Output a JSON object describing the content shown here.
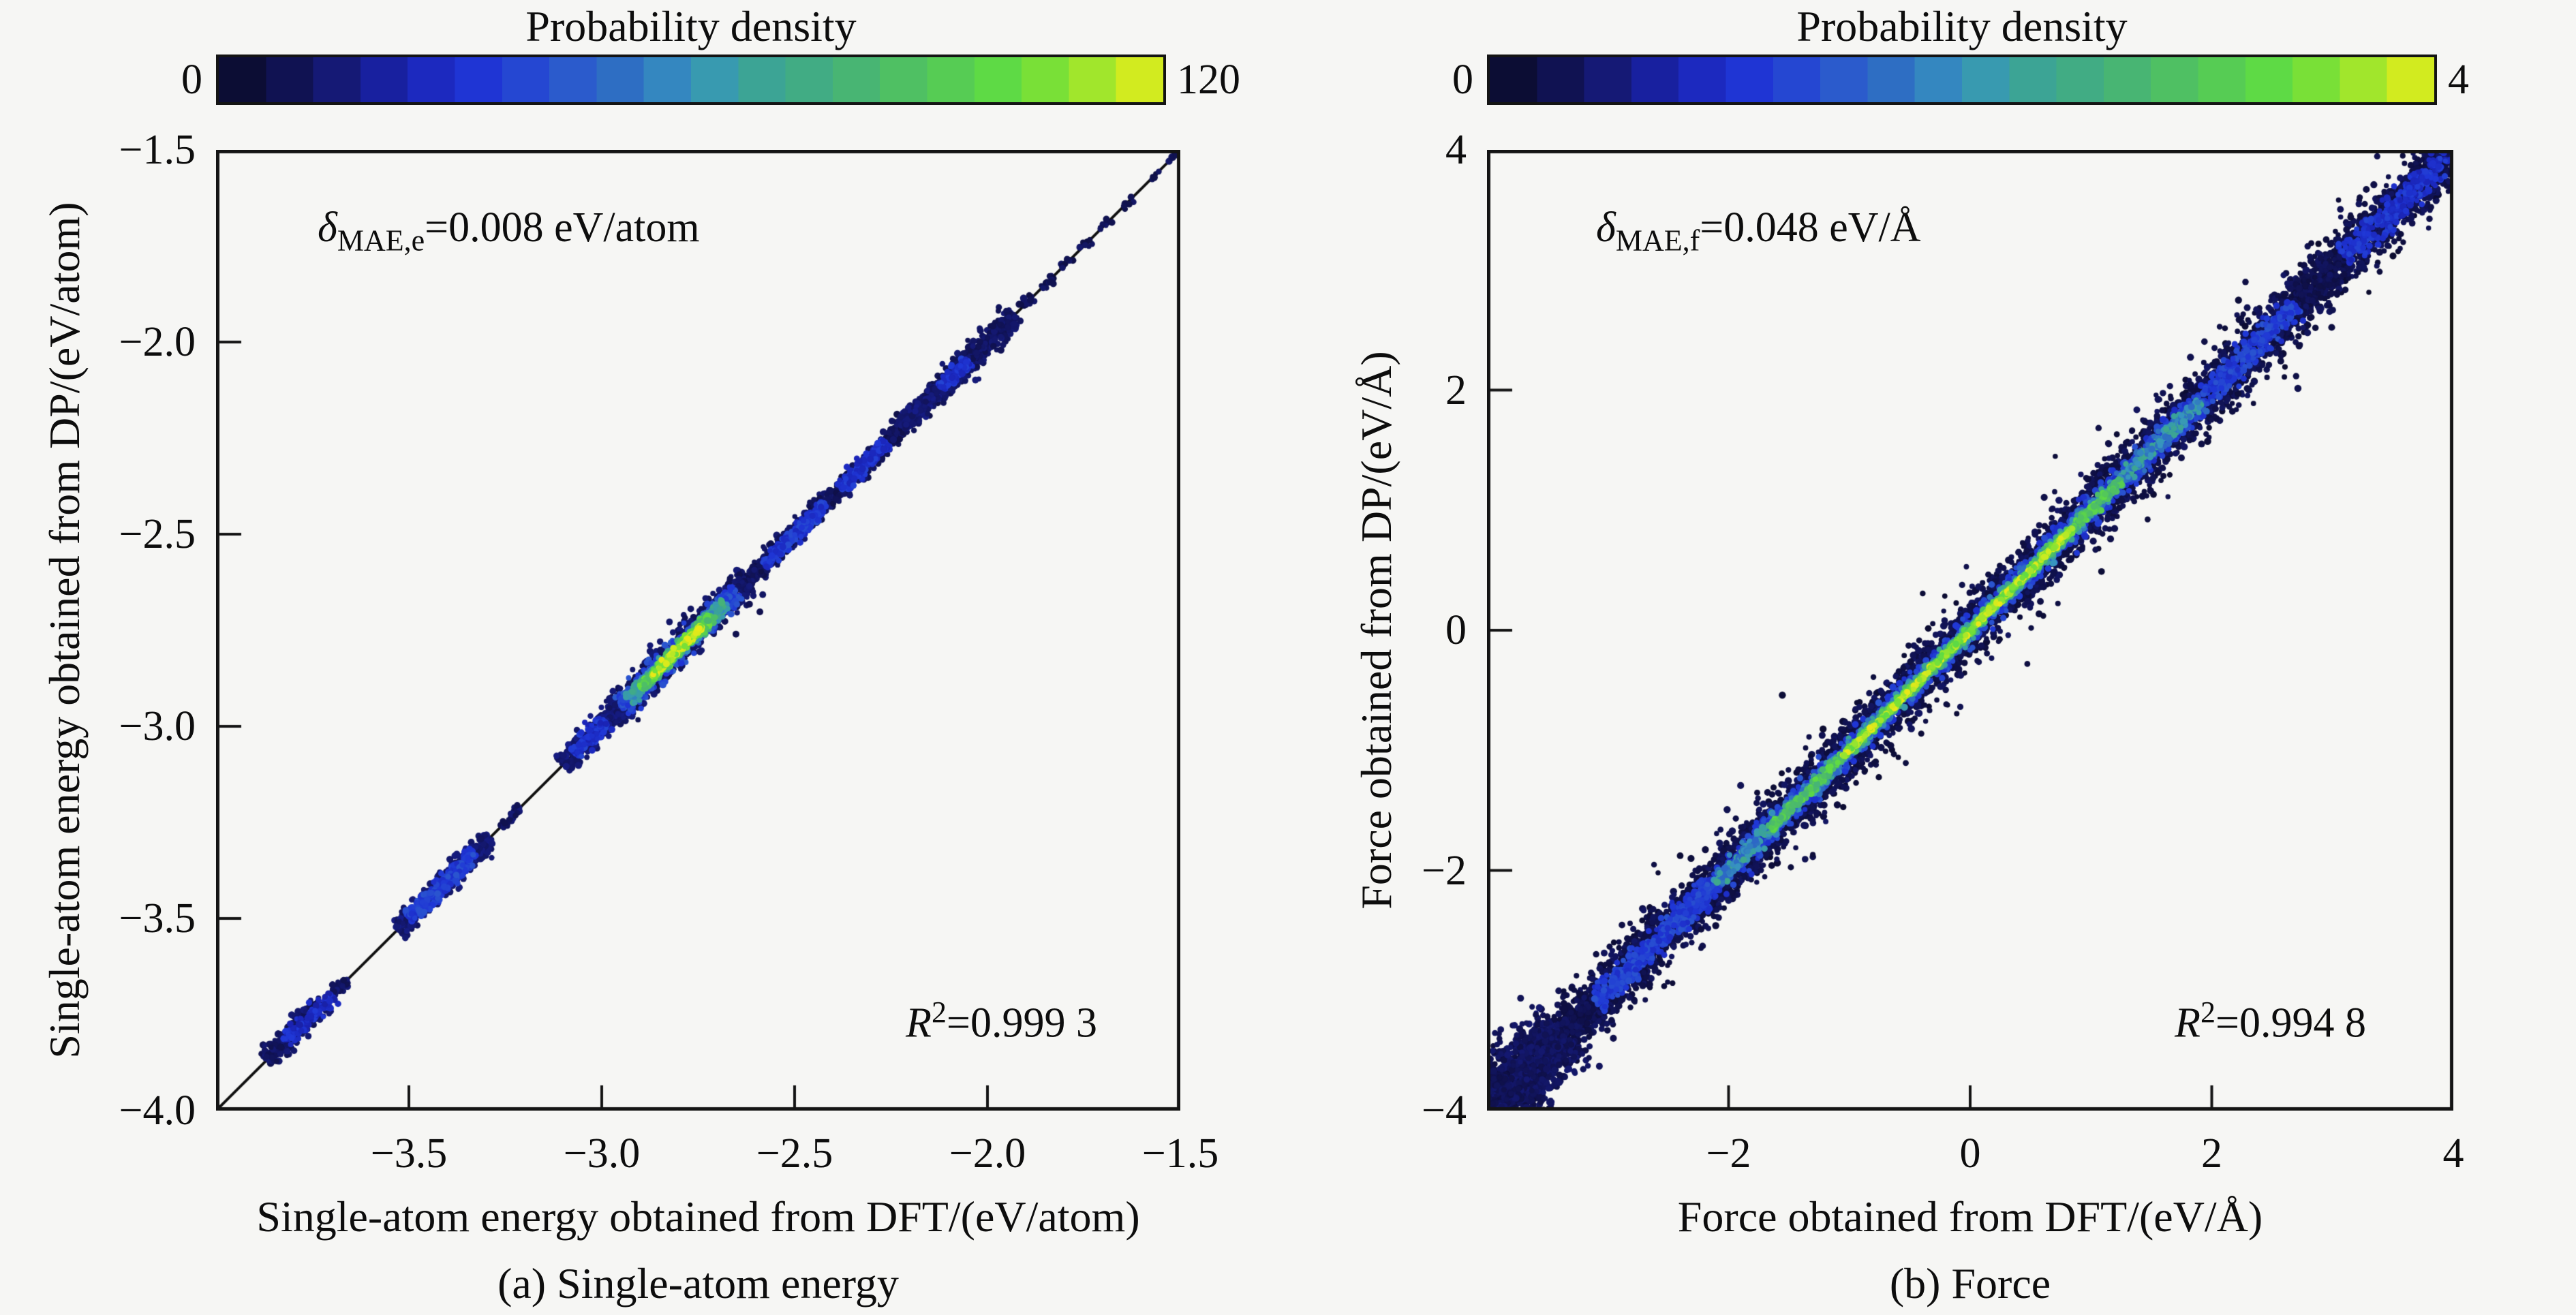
{
  "page": {
    "background": "#f6f6f4",
    "accent_black": "#141414"
  },
  "colormap_stops": [
    [
      0.0,
      "#0a0a26"
    ],
    [
      0.06,
      "#0f1048"
    ],
    [
      0.13,
      "#151a78"
    ],
    [
      0.2,
      "#1a23b4"
    ],
    [
      0.28,
      "#1f36d6"
    ],
    [
      0.36,
      "#2a55cf"
    ],
    [
      0.44,
      "#2f74c0"
    ],
    [
      0.5,
      "#3795c0"
    ],
    [
      0.56,
      "#3aa29a"
    ],
    [
      0.63,
      "#42ad82"
    ],
    [
      0.7,
      "#4cba6b"
    ],
    [
      0.77,
      "#55cb55"
    ],
    [
      0.83,
      "#5fdb43"
    ],
    [
      0.88,
      "#7ce136"
    ],
    [
      0.93,
      "#a5e62b"
    ],
    [
      0.97,
      "#cdeb20"
    ],
    [
      1.0,
      "#e9e818"
    ]
  ],
  "chart_data": [
    {
      "id": "energy",
      "type": "scatter",
      "caption": "(a) Single-atom energy",
      "colorbar": {
        "title": "Probability density",
        "min_label": "0",
        "max_label": "120",
        "min": 0,
        "max": 120,
        "segments": 20
      },
      "xlabel": "Single-atom energy obtained from DFT/(eV/atom)",
      "ylabel": "Single-atom energy obtained from DP/(eV/atom)",
      "xlim": [
        -4.0,
        -1.5
      ],
      "ylim": [
        -4.0,
        -1.5
      ],
      "xticks": [
        {
          "v": -3.5,
          "label": "−3.5"
        },
        {
          "v": -3.0,
          "label": "−3.0"
        },
        {
          "v": -2.5,
          "label": "−2.5"
        },
        {
          "v": -2.0,
          "label": "−2.0"
        },
        {
          "v": -1.5,
          "label": "−1.5"
        }
      ],
      "yticks": [
        {
          "v": -1.5,
          "label": "−1.5"
        },
        {
          "v": -2.0,
          "label": "−2.0"
        },
        {
          "v": -2.5,
          "label": "−2.5"
        },
        {
          "v": -3.0,
          "label": "−3.0"
        },
        {
          "v": -3.5,
          "label": "−3.5"
        },
        {
          "v": -4.0,
          "label": "−4.0"
        }
      ],
      "identity_line": true,
      "annotation_mae": {
        "symbol": "δ",
        "sub": "MAE,e",
        "rest": "=0.008 eV/atom"
      },
      "annotation_r2": {
        "base": "R",
        "sup": "2",
        "rest": "=0.999 3"
      },
      "density_bands": [
        {
          "from": -3.87,
          "to": -3.72,
          "sigma": 0.013,
          "n": 260,
          "level": 0.1
        },
        {
          "from": -3.82,
          "to": -3.7,
          "sigma": 0.009,
          "n": 130,
          "level": 0.24
        },
        {
          "from": -3.7,
          "to": -3.66,
          "sigma": 0.007,
          "n": 40,
          "level": 0.1
        },
        {
          "from": -3.53,
          "to": -3.29,
          "sigma": 0.014,
          "n": 420,
          "level": 0.12
        },
        {
          "from": -3.5,
          "to": -3.33,
          "sigma": 0.009,
          "n": 320,
          "level": 0.3
        },
        {
          "from": -3.26,
          "to": -3.21,
          "sigma": 0.006,
          "n": 35,
          "level": 0.1
        },
        {
          "from": -3.1,
          "to": -2.94,
          "sigma": 0.015,
          "n": 300,
          "level": 0.12
        },
        {
          "from": -3.07,
          "to": -2.99,
          "sigma": 0.01,
          "n": 130,
          "level": 0.26
        },
        {
          "from": -2.97,
          "to": -2.62,
          "sigma": 0.02,
          "n": 700,
          "level": 0.1
        },
        {
          "from": -2.95,
          "to": -2.65,
          "sigma": 0.013,
          "n": 480,
          "level": 0.33
        },
        {
          "from": -2.93,
          "to": -2.68,
          "sigma": 0.009,
          "n": 380,
          "level": 0.56
        },
        {
          "from": -2.9,
          "to": -2.71,
          "sigma": 0.006,
          "n": 280,
          "level": 0.78
        },
        {
          "from": -2.87,
          "to": -2.74,
          "sigma": 0.0035,
          "n": 170,
          "level": 0.95
        },
        {
          "from": -2.62,
          "to": -2.04,
          "sigma": 0.012,
          "n": 950,
          "level": 0.09
        },
        {
          "from": -2.58,
          "to": -2.42,
          "sigma": 0.008,
          "n": 220,
          "level": 0.28
        },
        {
          "from": -2.38,
          "to": -2.26,
          "sigma": 0.008,
          "n": 160,
          "level": 0.26
        },
        {
          "from": -2.22,
          "to": -2.1,
          "sigma": 0.011,
          "n": 180,
          "level": 0.12
        },
        {
          "from": -2.12,
          "to": -2.05,
          "sigma": 0.008,
          "n": 100,
          "level": 0.26
        },
        {
          "from": -2.09,
          "to": -1.93,
          "sigma": 0.015,
          "n": 340,
          "level": 0.1
        },
        {
          "from": -1.91,
          "to": -1.88,
          "sigma": 0.006,
          "n": 16,
          "level": 0.08
        },
        {
          "from": -1.86,
          "to": -1.83,
          "sigma": 0.006,
          "n": 12,
          "level": 0.08
        },
        {
          "from": -1.81,
          "to": -1.78,
          "sigma": 0.005,
          "n": 10,
          "level": 0.08
        },
        {
          "from": -1.76,
          "to": -1.73,
          "sigma": 0.005,
          "n": 9,
          "level": 0.08
        },
        {
          "from": -1.71,
          "to": -1.68,
          "sigma": 0.005,
          "n": 8,
          "level": 0.08
        },
        {
          "from": -1.65,
          "to": -1.62,
          "sigma": 0.004,
          "n": 7,
          "level": 0.08
        },
        {
          "from": -1.58,
          "to": -1.55,
          "sigma": 0.004,
          "n": 6,
          "level": 0.08
        },
        {
          "from": -1.53,
          "to": -1.51,
          "sigma": 0.004,
          "n": 5,
          "level": 0.08
        }
      ],
      "outlier_points": [
        [
          -2.617,
          -2.682
        ],
        [
          -2.59,
          -2.702
        ],
        [
          -2.652,
          -2.76
        ]
      ]
    },
    {
      "id": "force",
      "type": "scatter",
      "caption": "(b) Force",
      "colorbar": {
        "title": "Probability density",
        "min_label": "0",
        "max_label": "4",
        "min": 0,
        "max": 4,
        "segments": 20
      },
      "xlabel": "Force obtained from DFT/(eV/Å)",
      "ylabel": "Force obtained from DP/(eV/Å)",
      "xlim": [
        -4,
        4
      ],
      "ylim": [
        -4,
        4
      ],
      "xticks": [
        {
          "v": -2,
          "label": "−2"
        },
        {
          "v": 0,
          "label": "0"
        },
        {
          "v": 2,
          "label": "2"
        },
        {
          "v": 4,
          "label": "4"
        }
      ],
      "yticks": [
        {
          "v": 4,
          "label": "4"
        },
        {
          "v": 2,
          "label": "2"
        },
        {
          "v": 0,
          "label": "0"
        },
        {
          "v": -2,
          "label": "−2"
        },
        {
          "v": -4,
          "label": "−4"
        }
      ],
      "identity_line": true,
      "annotation_mae": {
        "symbol": "δ",
        "sub": "MAE,f",
        "rest": "=0.048 eV/Å"
      },
      "annotation_r2": {
        "base": "R",
        "sup": "2",
        "rest": "=0.994 8"
      },
      "density_bands": [
        {
          "from": -4.1,
          "to": 4.0,
          "sigma": 0.085,
          "n": 6500,
          "level": 0.07
        },
        {
          "from": -4.1,
          "to": 4.0,
          "sigma": 0.14,
          "n": 1300,
          "level": 0.05
        },
        {
          "from": -4.0,
          "to": 4.0,
          "sigma": 0.28,
          "n": 70,
          "level": 0.04
        },
        {
          "from": -3.1,
          "to": 2.7,
          "sigma": 0.048,
          "n": 2400,
          "level": 0.3
        },
        {
          "from": 3.1,
          "to": 3.95,
          "sigma": 0.05,
          "n": 280,
          "level": 0.26
        },
        {
          "from": -2.1,
          "to": 1.9,
          "sigma": 0.028,
          "n": 1200,
          "level": 0.5
        },
        {
          "from": -1.65,
          "to": 1.25,
          "sigma": 0.017,
          "n": 850,
          "level": 0.74
        },
        {
          "from": -1.05,
          "to": 0.85,
          "sigma": 0.009,
          "n": 450,
          "level": 0.92
        },
        {
          "from": -4.15,
          "to": -3.35,
          "sigma": 0.15,
          "n": 900,
          "level": 0.09
        },
        {
          "from": -4.15,
          "to": -3.7,
          "sigma": 0.2,
          "n": 450,
          "level": 0.07
        }
      ],
      "outlier_points": []
    }
  ]
}
